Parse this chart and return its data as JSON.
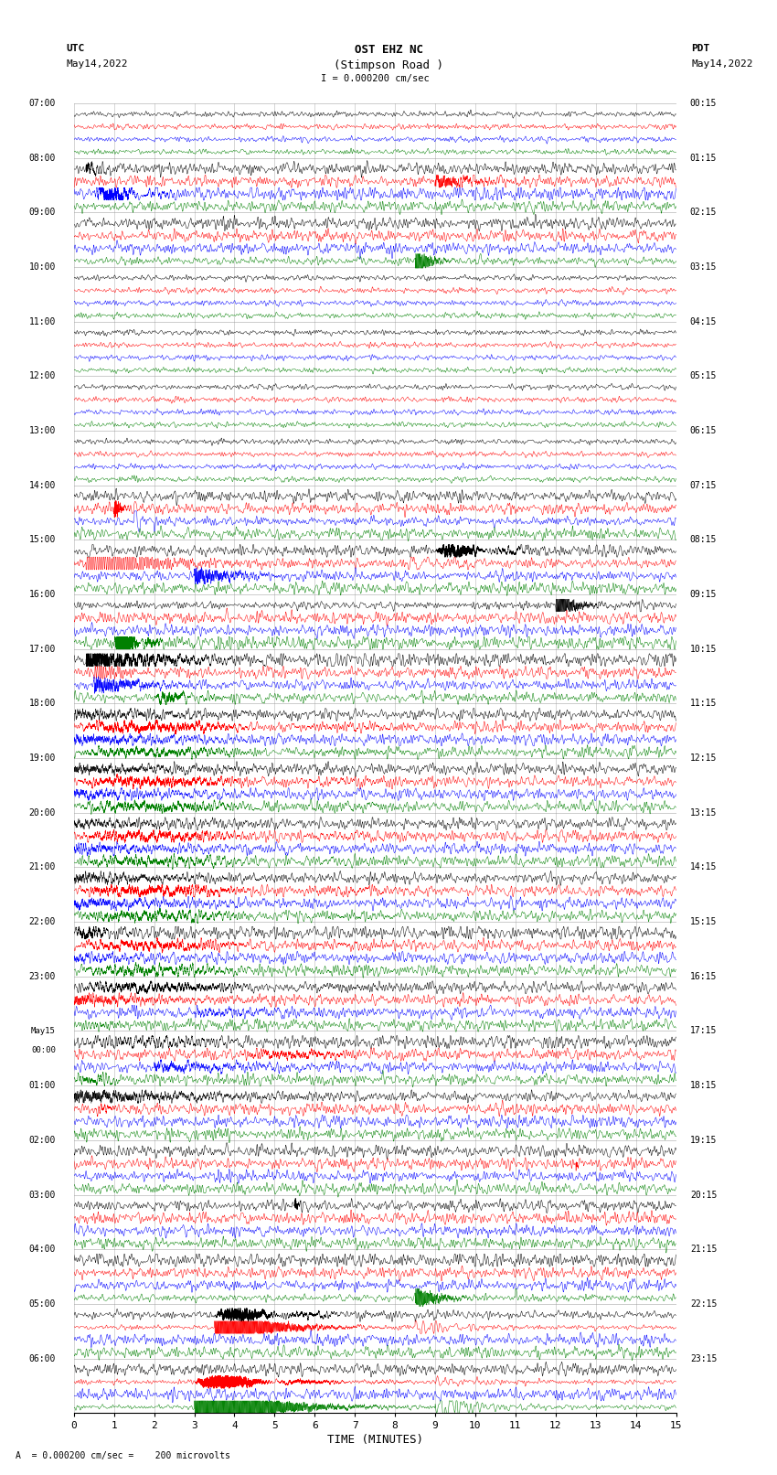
{
  "title_line1": "OST EHZ NC",
  "title_line2": "(Stimpson Road )",
  "title_line3": "I = 0.000200 cm/sec",
  "left_header_line1": "UTC",
  "left_header_line2": "May14,2022",
  "right_header_line1": "PDT",
  "right_header_line2": "May14,2022",
  "bottom_label": "TIME (MINUTES)",
  "bottom_note": "A  = 0.000200 cm/sec =    200 microvolts",
  "xlim": [
    0,
    15
  ],
  "xticks": [
    0,
    1,
    2,
    3,
    4,
    5,
    6,
    7,
    8,
    9,
    10,
    11,
    12,
    13,
    14,
    15
  ],
  "utc_labels": [
    "07:00",
    "08:00",
    "09:00",
    "10:00",
    "11:00",
    "12:00",
    "13:00",
    "14:00",
    "15:00",
    "16:00",
    "17:00",
    "18:00",
    "19:00",
    "20:00",
    "21:00",
    "22:00",
    "23:00",
    "May15\n00:00",
    "01:00",
    "02:00",
    "03:00",
    "04:00",
    "05:00",
    "06:00"
  ],
  "pdt_labels": [
    "00:15",
    "01:15",
    "02:15",
    "03:15",
    "04:15",
    "05:15",
    "06:15",
    "07:15",
    "08:15",
    "09:15",
    "10:15",
    "11:15",
    "12:15",
    "13:15",
    "14:15",
    "15:15",
    "16:15",
    "17:15",
    "18:15",
    "19:15",
    "20:15",
    "21:15",
    "22:15",
    "23:15"
  ],
  "n_rows": 24,
  "traces_per_row": 4,
  "bg_color": "#ffffff",
  "trace_colors": [
    "black",
    "red",
    "blue",
    "green"
  ],
  "grid_color": "#999999",
  "figsize": [
    8.5,
    16.13
  ],
  "dpi": 100,
  "row_noise_levels": [
    0.008,
    0.25,
    0.05,
    0.008,
    0.008,
    0.008,
    0.008,
    0.05,
    0.15,
    0.08,
    0.35,
    0.55,
    0.55,
    0.65,
    0.65,
    0.6,
    0.55,
    0.55,
    0.45,
    0.4,
    0.35,
    0.2,
    0.12,
    0.08
  ],
  "color_scale": {
    "0": [
      1.0,
      1.0,
      1.0,
      1.0
    ],
    "1": [
      0.8,
      1.2,
      1.5,
      0.5
    ],
    "2": [
      1.0,
      1.0,
      1.0,
      1.0
    ],
    "3": [
      1.0,
      1.0,
      1.0,
      1.0
    ],
    "4": [
      1.0,
      1.0,
      1.0,
      1.0
    ],
    "5": [
      1.0,
      1.0,
      1.0,
      1.0
    ],
    "6": [
      1.0,
      1.0,
      1.0,
      1.0
    ],
    "7": [
      1.0,
      1.2,
      0.8,
      0.6
    ],
    "8": [
      1.2,
      1.0,
      0.8,
      0.6
    ],
    "9": [
      0.8,
      0.8,
      0.8,
      1.5
    ],
    "10": [
      1.5,
      1.2,
      0.8,
      1.0
    ],
    "11": [
      1.2,
      1.0,
      1.2,
      1.0
    ],
    "12": [
      1.0,
      1.0,
      1.2,
      1.0
    ],
    "13": [
      1.2,
      1.2,
      1.0,
      1.0
    ],
    "14": [
      1.0,
      1.2,
      1.0,
      1.0
    ],
    "15": [
      1.5,
      1.0,
      1.2,
      1.0
    ],
    "16": [
      1.2,
      1.0,
      1.0,
      1.2
    ],
    "17": [
      1.5,
      1.2,
      1.0,
      0.6
    ],
    "18": [
      1.0,
      0.8,
      1.2,
      0.5
    ],
    "19": [
      1.0,
      0.8,
      1.0,
      0.5
    ],
    "20": [
      1.0,
      0.8,
      1.0,
      0.5
    ],
    "21": [
      1.5,
      0.5,
      0.8,
      0.5
    ],
    "22": [
      0.8,
      0.5,
      0.8,
      0.5
    ],
    "23": [
      0.5,
      0.5,
      0.5,
      0.5
    ]
  }
}
